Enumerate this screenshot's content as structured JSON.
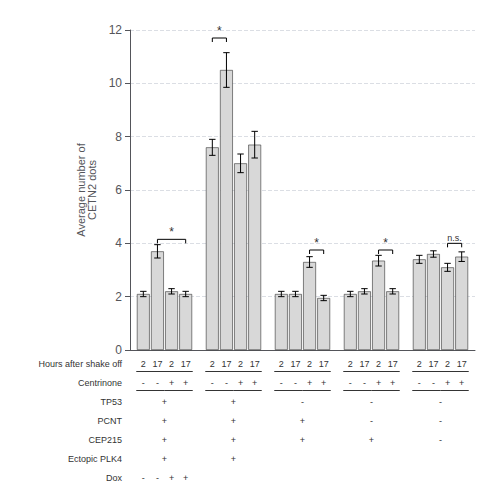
{
  "chart_data": {
    "type": "bar",
    "ylabel": "Average number of\nCETN2 dots",
    "categories": [
      null,
      null,
      null,
      null,
      null
    ],
    "series": [
      {
        "values": [
          2.1,
          7.6,
          2.1,
          2.1,
          3.4
        ],
        "errors": [
          0.1,
          0.3,
          0.1,
          0.1,
          0.15
        ]
      },
      {
        "values": [
          3.7,
          10.5,
          2.1,
          2.2,
          3.6
        ],
        "errors": [
          0.25,
          0.65,
          0.1,
          0.1,
          0.12
        ]
      },
      {
        "values": [
          2.2,
          7.0,
          3.3,
          3.35,
          3.1
        ],
        "errors": [
          0.1,
          0.35,
          0.2,
          0.2,
          0.15
        ]
      },
      {
        "values": [
          2.1,
          7.7,
          1.95,
          2.2,
          3.5
        ],
        "errors": [
          0.1,
          0.5,
          0.1,
          0.1,
          0.18
        ]
      }
    ],
    "color": "#d8d8d8",
    "ylim": [
      0,
      12
    ],
    "yticks": [
      0,
      2,
      4,
      6,
      8,
      10,
      12
    ],
    "grid": true,
    "tick_labels": "y",
    "brackets": [
      {
        "category": 0,
        "series": [
          1,
          3
        ],
        "y": 4.15,
        "label": "*"
      },
      {
        "category": 1,
        "series": [
          0,
          1
        ],
        "y": 11.7,
        "label": "*"
      },
      {
        "category": 2,
        "series": [
          2,
          3
        ],
        "y": 3.75,
        "label": "*"
      },
      {
        "category": 3,
        "series": [
          2,
          3
        ],
        "y": 3.75,
        "label": "*"
      },
      {
        "category": 4,
        "series": [
          2,
          3
        ],
        "y": 4.0,
        "label": "n.s."
      }
    ],
    "label_rows": [
      {
        "name": "Hours after shake off",
        "per_series": [
          "2",
          "17",
          "2",
          "17"
        ]
      },
      {
        "name": "Centrinone",
        "per_series": [
          "-",
          "-",
          "+",
          "+"
        ]
      },
      {
        "name": "TP53",
        "per_category": [
          "+",
          "+",
          "-",
          "-",
          "-"
        ]
      },
      {
        "name": "PCNT",
        "per_category": [
          "+",
          "+",
          "+",
          "-",
          "-"
        ]
      },
      {
        "name": "CEP215",
        "per_category": [
          "+",
          "+",
          "+",
          "+",
          "-"
        ]
      },
      {
        "name": "Ectopic PLK4",
        "per_category": [
          "+",
          "+",
          null,
          null,
          null
        ]
      },
      {
        "name": "Dox",
        "per_bar": [
          [
            "-",
            "-",
            "+",
            "+"
          ],
          null,
          null,
          null,
          null
        ]
      }
    ]
  }
}
